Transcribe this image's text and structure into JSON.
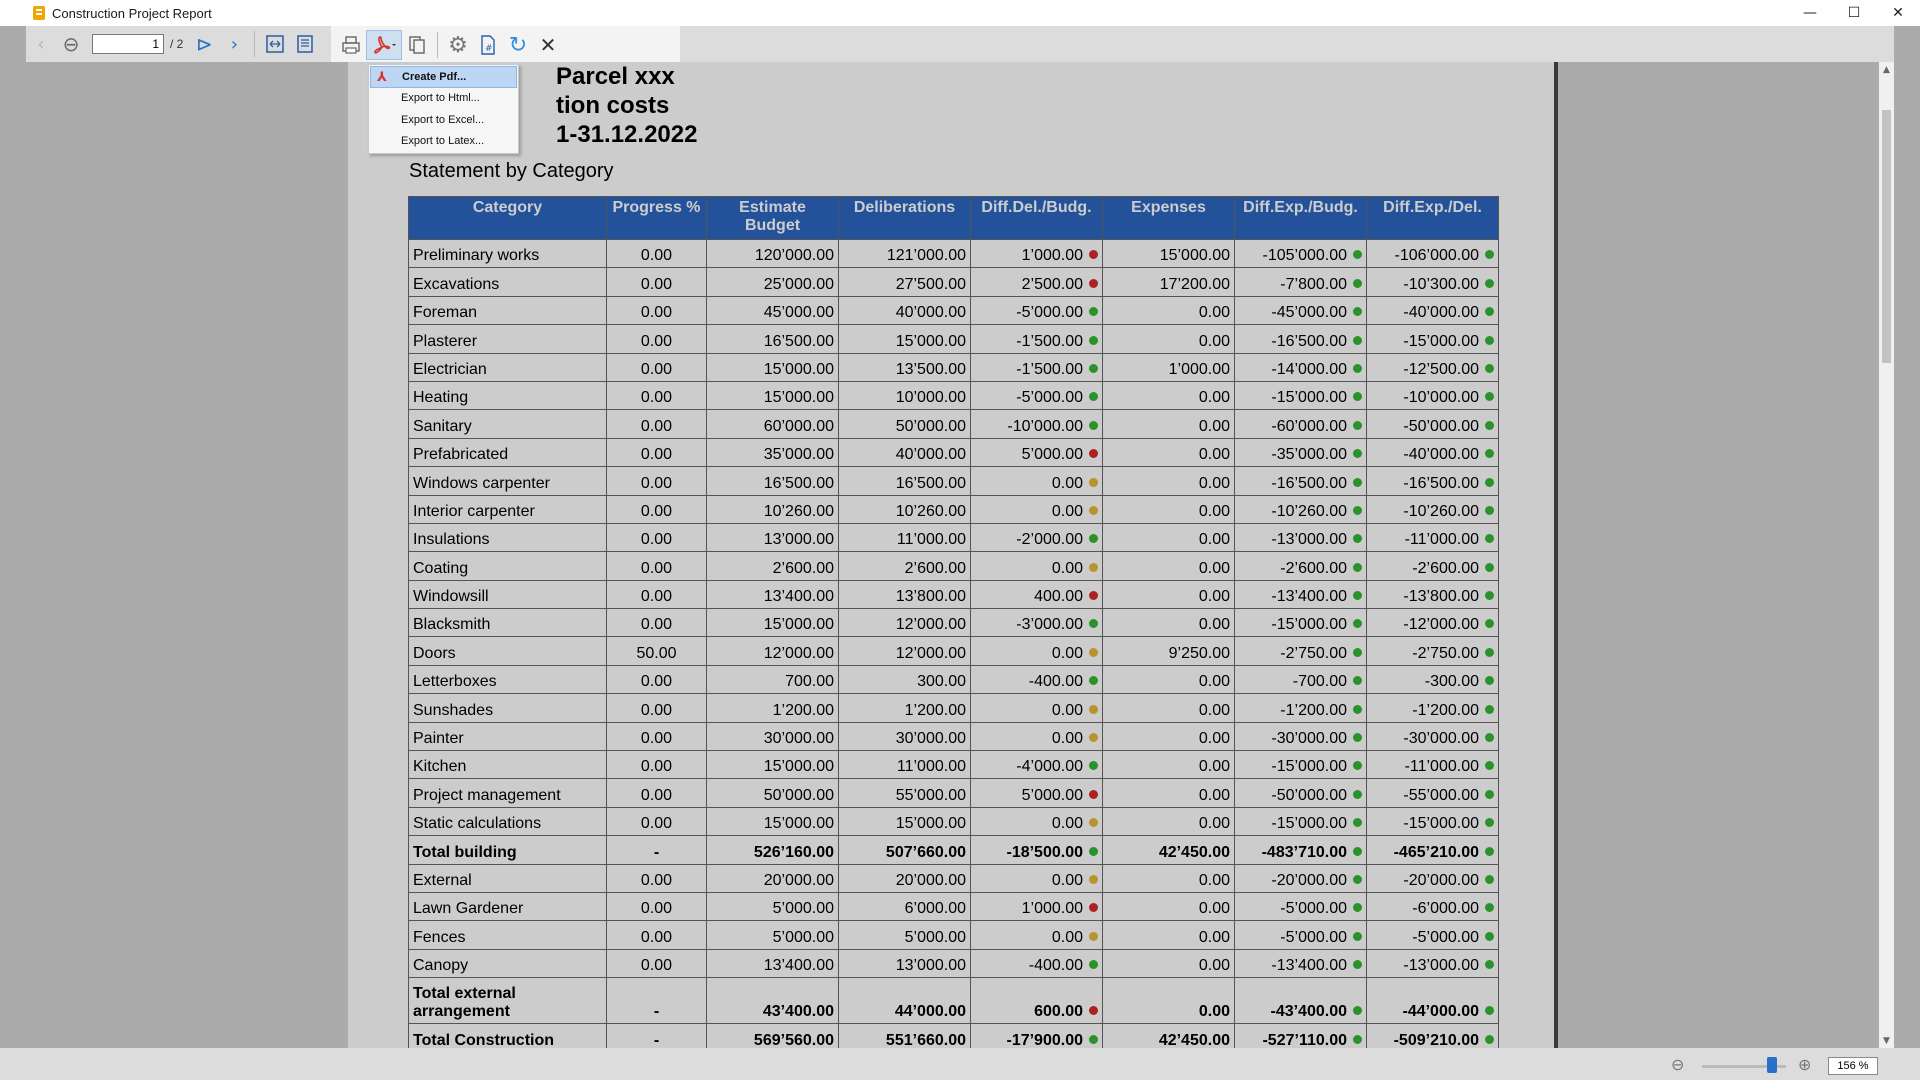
{
  "window": {
    "title": "Construction Project Report",
    "minimize": "—",
    "maximize": "☐",
    "close": "✕"
  },
  "toolbar": {
    "page_current": "1",
    "page_total": "/ 2",
    "icons": [
      "prev-icon",
      "first-page-icon",
      "next-page-icon",
      "next-icon",
      "fit-width-icon",
      "fit-page-icon",
      "print-icon",
      "pdf-export-icon",
      "copy-icon",
      "settings-icon",
      "page-number-icon",
      "refresh-icon",
      "close-icon"
    ]
  },
  "export_menu": {
    "items": [
      "Create Pdf...",
      "Export to Html...",
      "Export to Excel...",
      "Export to Latex..."
    ],
    "selected": "Create Pdf..."
  },
  "report": {
    "title_lines": [
      "Parcel xxx",
      "tion costs",
      "1-31.12.2022"
    ],
    "subtitle": "Statement by Category",
    "columns": [
      "Category",
      "Progress %",
      "Estimate Budget",
      "Deliberations",
      "Diff.Del./Budg.",
      "Expenses",
      "Diff.Exp./Budg.",
      "Diff.Exp./Del."
    ],
    "rows": [
      {
        "cat": "Preliminary works",
        "progress": "0.00",
        "budget": "120’000.00",
        "delib": "121’000.00",
        "diff_db": "1’000.00",
        "s1": "red",
        "expenses": "15’000.00",
        "diff_eb": "-105’000.00",
        "s2": "green",
        "diff_ed": "-106’000.00",
        "s3": "green"
      },
      {
        "cat": "Excavations",
        "progress": "0.00",
        "budget": "25’000.00",
        "delib": "27’500.00",
        "diff_db": "2’500.00",
        "s1": "red",
        "expenses": "17’200.00",
        "diff_eb": "-7’800.00",
        "s2": "green",
        "diff_ed": "-10’300.00",
        "s3": "green"
      },
      {
        "cat": "Foreman",
        "progress": "0.00",
        "budget": "45’000.00",
        "delib": "40’000.00",
        "diff_db": "-5’000.00",
        "s1": "green",
        "expenses": "0.00",
        "diff_eb": "-45’000.00",
        "s2": "green",
        "diff_ed": "-40’000.00",
        "s3": "green"
      },
      {
        "cat": "Plasterer",
        "progress": "0.00",
        "budget": "16’500.00",
        "delib": "15’000.00",
        "diff_db": "-1’500.00",
        "s1": "green",
        "expenses": "0.00",
        "diff_eb": "-16’500.00",
        "s2": "green",
        "diff_ed": "-15’000.00",
        "s3": "green"
      },
      {
        "cat": "Electrician",
        "progress": "0.00",
        "budget": "15’000.00",
        "delib": "13’500.00",
        "diff_db": "-1’500.00",
        "s1": "green",
        "expenses": "1’000.00",
        "diff_eb": "-14’000.00",
        "s2": "green",
        "diff_ed": "-12’500.00",
        "s3": "green"
      },
      {
        "cat": "Heating",
        "progress": "0.00",
        "budget": "15’000.00",
        "delib": "10’000.00",
        "diff_db": "-5’000.00",
        "s1": "green",
        "expenses": "0.00",
        "diff_eb": "-15’000.00",
        "s2": "green",
        "diff_ed": "-10’000.00",
        "s3": "green"
      },
      {
        "cat": "Sanitary",
        "progress": "0.00",
        "budget": "60’000.00",
        "delib": "50’000.00",
        "diff_db": "-10’000.00",
        "s1": "green",
        "expenses": "0.00",
        "diff_eb": "-60’000.00",
        "s2": "green",
        "diff_ed": "-50’000.00",
        "s3": "green"
      },
      {
        "cat": "Prefabricated",
        "progress": "0.00",
        "budget": "35’000.00",
        "delib": "40’000.00",
        "diff_db": "5’000.00",
        "s1": "red",
        "expenses": "0.00",
        "diff_eb": "-35’000.00",
        "s2": "green",
        "diff_ed": "-40’000.00",
        "s3": "green"
      },
      {
        "cat": "Windows carpenter",
        "progress": "0.00",
        "budget": "16’500.00",
        "delib": "16’500.00",
        "diff_db": "0.00",
        "s1": "yellow",
        "expenses": "0.00",
        "diff_eb": "-16’500.00",
        "s2": "green",
        "diff_ed": "-16’500.00",
        "s3": "green"
      },
      {
        "cat": "Interior carpenter",
        "progress": "0.00",
        "budget": "10’260.00",
        "delib": "10’260.00",
        "diff_db": "0.00",
        "s1": "yellow",
        "expenses": "0.00",
        "diff_eb": "-10’260.00",
        "s2": "green",
        "diff_ed": "-10’260.00",
        "s3": "green"
      },
      {
        "cat": "Insulations",
        "progress": "0.00",
        "budget": "13’000.00",
        "delib": "11’000.00",
        "diff_db": "-2’000.00",
        "s1": "green",
        "expenses": "0.00",
        "diff_eb": "-13’000.00",
        "s2": "green",
        "diff_ed": "-11’000.00",
        "s3": "green"
      },
      {
        "cat": "Coating",
        "progress": "0.00",
        "budget": "2’600.00",
        "delib": "2’600.00",
        "diff_db": "0.00",
        "s1": "yellow",
        "expenses": "0.00",
        "diff_eb": "-2’600.00",
        "s2": "green",
        "diff_ed": "-2’600.00",
        "s3": "green"
      },
      {
        "cat": "Windowsill",
        "progress": "0.00",
        "budget": "13’400.00",
        "delib": "13’800.00",
        "diff_db": "400.00",
        "s1": "red",
        "expenses": "0.00",
        "diff_eb": "-13’400.00",
        "s2": "green",
        "diff_ed": "-13’800.00",
        "s3": "green"
      },
      {
        "cat": "Blacksmith",
        "progress": "0.00",
        "budget": "15’000.00",
        "delib": "12’000.00",
        "diff_db": "-3’000.00",
        "s1": "green",
        "expenses": "0.00",
        "diff_eb": "-15’000.00",
        "s2": "green",
        "diff_ed": "-12’000.00",
        "s3": "green"
      },
      {
        "cat": "Doors",
        "progress": "50.00",
        "budget": "12’000.00",
        "delib": "12’000.00",
        "diff_db": "0.00",
        "s1": "yellow",
        "expenses": "9’250.00",
        "diff_eb": "-2’750.00",
        "s2": "green",
        "diff_ed": "-2’750.00",
        "s3": "green"
      },
      {
        "cat": "Letterboxes",
        "progress": "0.00",
        "budget": "700.00",
        "delib": "300.00",
        "diff_db": "-400.00",
        "s1": "green",
        "expenses": "0.00",
        "diff_eb": "-700.00",
        "s2": "green",
        "diff_ed": "-300.00",
        "s3": "green"
      },
      {
        "cat": "Sunshades",
        "progress": "0.00",
        "budget": "1’200.00",
        "delib": "1’200.00",
        "diff_db": "0.00",
        "s1": "yellow",
        "expenses": "0.00",
        "diff_eb": "-1’200.00",
        "s2": "green",
        "diff_ed": "-1’200.00",
        "s3": "green"
      },
      {
        "cat": "Painter",
        "progress": "0.00",
        "budget": "30’000.00",
        "delib": "30’000.00",
        "diff_db": "0.00",
        "s1": "yellow",
        "expenses": "0.00",
        "diff_eb": "-30’000.00",
        "s2": "green",
        "diff_ed": "-30’000.00",
        "s3": "green"
      },
      {
        "cat": "Kitchen",
        "progress": "0.00",
        "budget": "15’000.00",
        "delib": "11’000.00",
        "diff_db": "-4’000.00",
        "s1": "green",
        "expenses": "0.00",
        "diff_eb": "-15’000.00",
        "s2": "green",
        "diff_ed": "-11’000.00",
        "s3": "green"
      },
      {
        "cat": "Project management",
        "progress": "0.00",
        "budget": "50’000.00",
        "delib": "55’000.00",
        "diff_db": "5’000.00",
        "s1": "red",
        "expenses": "0.00",
        "diff_eb": "-50’000.00",
        "s2": "green",
        "diff_ed": "-55’000.00",
        "s3": "green"
      },
      {
        "cat": "Static calculations",
        "progress": "0.00",
        "budget": "15’000.00",
        "delib": "15’000.00",
        "diff_db": "0.00",
        "s1": "yellow",
        "expenses": "0.00",
        "diff_eb": "-15’000.00",
        "s2": "green",
        "diff_ed": "-15’000.00",
        "s3": "green"
      },
      {
        "cat": "Total building",
        "total": true,
        "progress": "-",
        "budget": "526’160.00",
        "delib": "507’660.00",
        "diff_db": "-18’500.00",
        "s1": "green",
        "expenses": "42’450.00",
        "diff_eb": "-483’710.00",
        "s2": "green",
        "diff_ed": "-465’210.00",
        "s3": "green"
      },
      {
        "cat": "External",
        "progress": "0.00",
        "budget": "20’000.00",
        "delib": "20’000.00",
        "diff_db": "0.00",
        "s1": "yellow",
        "expenses": "0.00",
        "diff_eb": "-20’000.00",
        "s2": "green",
        "diff_ed": "-20’000.00",
        "s3": "green"
      },
      {
        "cat": "Lawn Gardener",
        "progress": "0.00",
        "budget": "5’000.00",
        "delib": "6’000.00",
        "diff_db": "1’000.00",
        "s1": "red",
        "expenses": "0.00",
        "diff_eb": "-5’000.00",
        "s2": "green",
        "diff_ed": "-6’000.00",
        "s3": "green"
      },
      {
        "cat": "Fences",
        "progress": "0.00",
        "budget": "5’000.00",
        "delib": "5’000.00",
        "diff_db": "0.00",
        "s1": "yellow",
        "expenses": "0.00",
        "diff_eb": "-5’000.00",
        "s2": "green",
        "diff_ed": "-5’000.00",
        "s3": "green"
      },
      {
        "cat": "Canopy",
        "progress": "0.00",
        "budget": "13’400.00",
        "delib": "13’000.00",
        "diff_db": "-400.00",
        "s1": "green",
        "expenses": "0.00",
        "diff_eb": "-13’400.00",
        "s2": "green",
        "diff_ed": "-13’000.00",
        "s3": "green"
      },
      {
        "cat": "Total external arrangement",
        "total": true,
        "tall": true,
        "progress": "-",
        "budget": "43’400.00",
        "delib": "44’000.00",
        "diff_db": "600.00",
        "s1": "red",
        "expenses": "0.00",
        "diff_eb": "-43’400.00",
        "s2": "green",
        "diff_ed": "-44’000.00",
        "s3": "green"
      },
      {
        "cat": "Total Construction",
        "total": true,
        "progress": "-",
        "budget": "569’560.00",
        "delib": "551’660.00",
        "diff_db": "-17’900.00",
        "s1": "green",
        "expenses": "42’450.00",
        "diff_eb": "-527’110.00",
        "s2": "green",
        "diff_ed": "-509’210.00",
        "s3": "green"
      }
    ]
  },
  "statusbar": {
    "zoom": "156 %"
  },
  "colors": {
    "header_bg": "#2c67c2",
    "status_green": "#35b735",
    "status_red": "#d82a2a",
    "status_yellow": "#e6b83a"
  }
}
